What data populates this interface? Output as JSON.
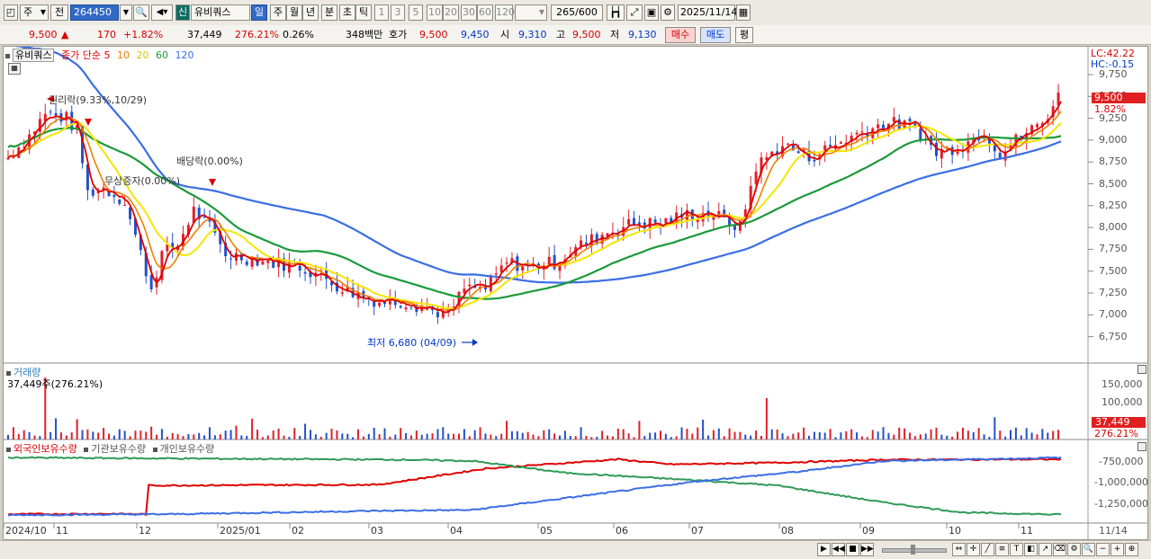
{
  "toolbar": {
    "type_label": "주",
    "range_label": "전",
    "code": "264450",
    "new_badge": "신",
    "stock_name": "유비쿼스",
    "periods": [
      "일",
      "주",
      "월",
      "년",
      "분",
      "초",
      "틱"
    ],
    "active_period": "일",
    "intervals": [
      "1",
      "3",
      "5",
      "10",
      "20",
      "30",
      "60",
      "120"
    ],
    "count": "265/600",
    "date": "2025/11/14"
  },
  "quote": {
    "price": "9,500",
    "change_arrow": "▲",
    "change": "170",
    "change_pct": "+1.82%",
    "volume": "37,449",
    "volume_ratio": "276.21%",
    "turnover": "0.26%",
    "amount": "348백만",
    "bid_label": "호가",
    "ask": "9,500",
    "bid": "9,450",
    "open_label": "시",
    "open": "9,310",
    "high_label": "고",
    "high": "9,500",
    "low_label": "저",
    "low": "9,130",
    "buy_label": "매수",
    "sell_label": "매도",
    "eval_label": "평"
  },
  "legend": {
    "name": "유비쿼스",
    "title": "종가 단순",
    "ma": [
      "5",
      "10",
      "20",
      "60",
      "120"
    ]
  },
  "right_top": {
    "lc": "LC:42.22",
    "hc": "HC:-0.15"
  },
  "price_axis": [
    "9,750",
    "9,500",
    "9,250",
    "9,000",
    "8,750",
    "8,500",
    "8,250",
    "8,000",
    "7,750",
    "7,500",
    "7,250",
    "7,000",
    "6,750"
  ],
  "price_marker": {
    "price": "9,500",
    "pct": "1.82%"
  },
  "annotations": {
    "rights": "권리락(9.33%,10/29)",
    "bonus": "무상증자(0.00%)",
    "dividend": "배당락(0.00%)",
    "low": "최저 6,680 (04/09)"
  },
  "volume": {
    "title": "거래량",
    "value": "37,449주(276.21%)",
    "axis": [
      "150,000",
      "100,000"
    ],
    "marker": "37,449",
    "marker_pct": "276.21%"
  },
  "holdings": {
    "legend": [
      "외국인보유수량",
      "기관보유수량",
      "개인보유수량"
    ],
    "axis": [
      "-750,000",
      "-1,000,000",
      "-1,250,000"
    ]
  },
  "x_axis": [
    "2024/10",
    "11",
    "12",
    "2025/01",
    "02",
    "03",
    "04",
    "05",
    "06",
    "07",
    "08",
    "09",
    "10",
    "11"
  ],
  "x_end": "11/14",
  "colors": {
    "ma5": "#e00000",
    "ma10": "#f08000",
    "ma20": "#f4e600",
    "ma60": "#1a9a3a",
    "ma120": "#3a6ee6",
    "up": "#e0202a",
    "down": "#2450c8",
    "foreign": "#e00000",
    "inst": "#2e9a58",
    "indiv": "#3a6ee6"
  }
}
